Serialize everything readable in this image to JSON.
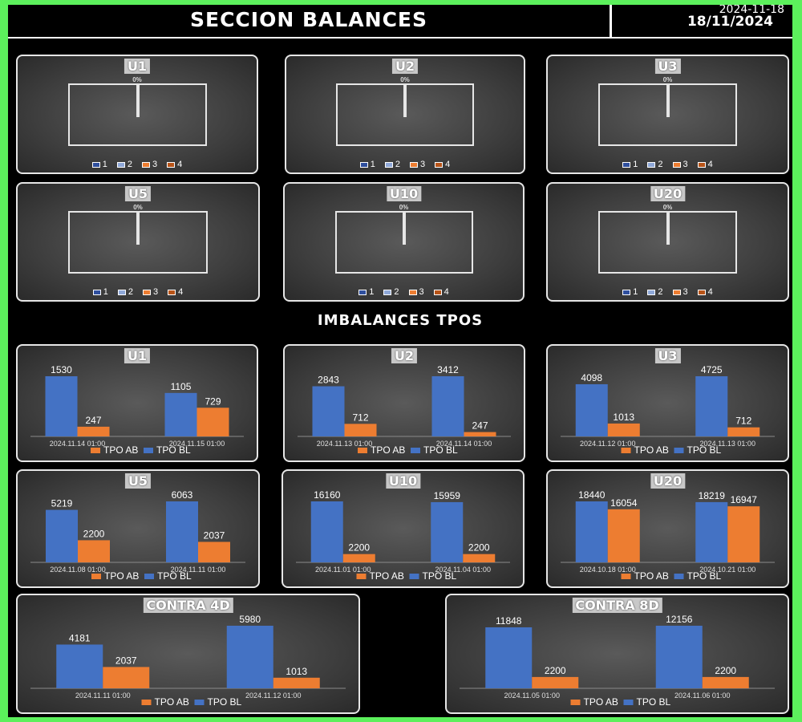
{
  "header": {
    "title": "SECCION BALANCES",
    "date_iso": "2024-11-18",
    "date": "18/11/2024"
  },
  "gauge_section": {
    "percent_label": "0%",
    "legend": [
      {
        "label": "1",
        "color": "#2f4f9e"
      },
      {
        "label": "2",
        "color": "#8fa8d8"
      },
      {
        "label": "3",
        "color": "#ed7d31"
      },
      {
        "label": "4",
        "color": "#b85418"
      }
    ],
    "panels": [
      {
        "title": "U1"
      },
      {
        "title": "U2"
      },
      {
        "title": "U3"
      },
      {
        "title": "U5"
      },
      {
        "title": "U10"
      },
      {
        "title": "U20"
      }
    ]
  },
  "section2_title": "IMBALANCES TPOS",
  "colors": {
    "tpo_bl": "#4472c4",
    "tpo_ab": "#ed7d31",
    "background": "#000000",
    "frame": "#5cf05c"
  },
  "chart_data": [
    {
      "type": "bar",
      "title": "U1",
      "categories": [
        "2024.11.14 01:00",
        "2024.11.15 01:00"
      ],
      "series": [
        {
          "name": "TPO BL",
          "values": [
            1530,
            1105
          ]
        },
        {
          "name": "TPO AB",
          "values": [
            247,
            729
          ]
        }
      ],
      "legend": [
        "TPO AB",
        "TPO BL"
      ]
    },
    {
      "type": "bar",
      "title": "U2",
      "categories": [
        "2024.11.13 01:00",
        "2024.11.14 01:00"
      ],
      "series": [
        {
          "name": "TPO BL",
          "values": [
            2843,
            3412
          ]
        },
        {
          "name": "TPO AB",
          "values": [
            712,
            247
          ]
        }
      ],
      "legend": [
        "TPO AB",
        "TPO BL"
      ]
    },
    {
      "type": "bar",
      "title": "U3",
      "categories": [
        "2024.11.12 01:00",
        "2024.11.13 01:00"
      ],
      "series": [
        {
          "name": "TPO BL",
          "values": [
            4098,
            4725
          ]
        },
        {
          "name": "TPO AB",
          "values": [
            1013,
            712
          ]
        }
      ],
      "legend": [
        "TPO AB",
        "TPO BL"
      ]
    },
    {
      "type": "bar",
      "title": "U5",
      "categories": [
        "2024.11.08 01:00",
        "2024.11.11 01:00"
      ],
      "series": [
        {
          "name": "TPO BL",
          "values": [
            5219,
            6063
          ]
        },
        {
          "name": "TPO AB",
          "values": [
            2200,
            2037
          ]
        }
      ],
      "legend": [
        "TPO AB",
        "TPO BL"
      ]
    },
    {
      "type": "bar",
      "title": "U10",
      "categories": [
        "2024.11.01 01:00",
        "2024.11.04 01:00"
      ],
      "series": [
        {
          "name": "TPO BL",
          "values": [
            16160,
            15959
          ]
        },
        {
          "name": "TPO AB",
          "values": [
            2200,
            2200
          ]
        }
      ],
      "legend": [
        "TPO AB",
        "TPO BL"
      ]
    },
    {
      "type": "bar",
      "title": "U20",
      "categories": [
        "2024.10.18 01:00",
        "2024.10.21 01:00"
      ],
      "series": [
        {
          "name": "TPO BL",
          "values": [
            18440,
            18219
          ]
        },
        {
          "name": "TPO AB",
          "values": [
            16054,
            16947
          ]
        }
      ],
      "legend": [
        "TPO AB",
        "TPO BL"
      ]
    },
    {
      "type": "bar",
      "title": "CONTRA 4D",
      "categories": [
        "2024.11.11 01:00",
        "2024.11.12 01:00"
      ],
      "series": [
        {
          "name": "TPO BL",
          "values": [
            4181,
            5980
          ]
        },
        {
          "name": "TPO AB",
          "values": [
            2037,
            1013
          ]
        }
      ],
      "legend": [
        "TPO AB",
        "TPO BL"
      ]
    },
    {
      "type": "bar",
      "title": "CONTRA 8D",
      "categories": [
        "2024.11.05 01:00",
        "2024.11.06 01:00"
      ],
      "series": [
        {
          "name": "TPO BL",
          "values": [
            11848,
            12156
          ]
        },
        {
          "name": "TPO AB",
          "values": [
            2200,
            2200
          ]
        }
      ],
      "legend": [
        "TPO AB",
        "TPO BL"
      ]
    }
  ]
}
